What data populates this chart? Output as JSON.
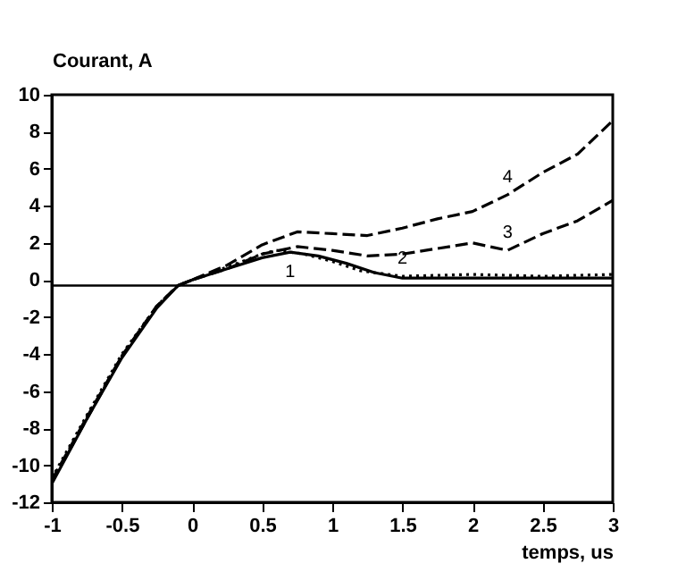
{
  "chart_data": {
    "type": "line",
    "xlabel": "temps, us",
    "ylabel": "Courant, A",
    "xlim": [
      -1,
      3
    ],
    "ylim": [
      -12,
      10
    ],
    "xticks": [
      -1,
      -0.5,
      0,
      0.5,
      1,
      1.5,
      2,
      2.5,
      3
    ],
    "yticks": [
      -12,
      -10,
      -8,
      -6,
      -4,
      -2,
      0,
      2,
      4,
      6,
      8,
      10
    ],
    "grid": false,
    "series": [
      {
        "name": "1",
        "color": "#000000",
        "line_style": "solid",
        "x": [
          -1,
          -0.75,
          -0.5,
          -0.25,
          -0.1,
          0,
          0.25,
          0.5,
          0.7,
          0.9,
          1.1,
          1.3,
          1.5,
          2,
          2.5,
          3
        ],
        "values": [
          -11,
          -7.5,
          -4.2,
          -1.5,
          -0.3,
          0,
          0.6,
          1.2,
          1.5,
          1.3,
          0.9,
          0.4,
          0.1,
          0.1,
          0.1,
          0.1
        ]
      },
      {
        "name": "2",
        "color": "#000000",
        "line_style": "dotted",
        "x": [
          -1,
          -0.75,
          -0.5,
          -0.25,
          -0.1,
          0,
          0.25,
          0.5,
          0.6,
          0.8,
          1,
          1.2,
          1.5,
          2,
          2.5,
          3
        ],
        "values": [
          -10.7,
          -7.3,
          -4,
          -1.4,
          -0.3,
          0,
          0.7,
          1.4,
          1.6,
          1.4,
          1,
          0.5,
          0.2,
          0.3,
          0.2,
          0.3
        ]
      },
      {
        "name": "3",
        "color": "#000000",
        "line_style": "dashed",
        "x": [
          -1,
          -0.75,
          -0.5,
          -0.25,
          -0.1,
          0,
          0.25,
          0.5,
          0.75,
          1,
          1.25,
          1.5,
          2,
          2.25,
          2.5,
          2.75,
          3
        ],
        "values": [
          -10.8,
          -7.4,
          -4.1,
          -1.4,
          -0.3,
          0,
          0.6,
          1.4,
          1.8,
          1.6,
          1.3,
          1.4,
          2,
          1.6,
          2.5,
          3.2,
          4.3
        ]
      },
      {
        "name": "4",
        "color": "#000000",
        "line_style": "dashed",
        "x": [
          -1,
          -0.75,
          -0.5,
          -0.25,
          -0.1,
          0,
          0.25,
          0.5,
          0.75,
          1,
          1.25,
          1.5,
          1.75,
          2,
          2.25,
          2.5,
          2.75,
          3
        ],
        "values": [
          -10.9,
          -7.5,
          -4.1,
          -1.4,
          -0.3,
          0,
          0.8,
          1.9,
          2.6,
          2.5,
          2.4,
          2.8,
          3.3,
          3.7,
          4.6,
          5.8,
          6.8,
          8.6
        ]
      }
    ],
    "ref_lines": [
      {
        "axis": "y",
        "value": -0.3,
        "color": "#000000"
      }
    ]
  }
}
